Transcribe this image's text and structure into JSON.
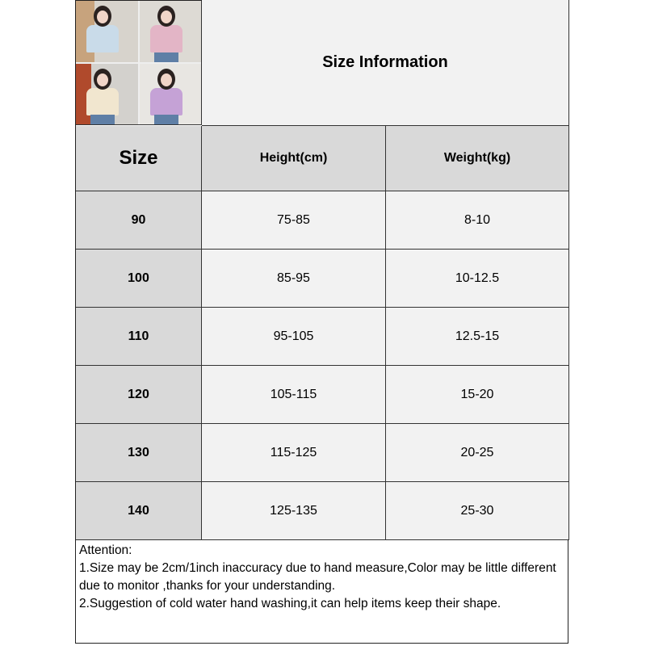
{
  "title": "Size Information",
  "photo": {
    "tiles": [
      {
        "top_color": "#c9dbe9",
        "bg": "#c7a37d"
      },
      {
        "top_color": "#e3b5c6",
        "bg": "#dddad4"
      },
      {
        "top_color": "#f1e6cf",
        "bg": "#b04a2c"
      },
      {
        "top_color": "#c5a2d6",
        "bg": "#e8e6e2"
      }
    ]
  },
  "table": {
    "headers": [
      "Size",
      "Height(cm)",
      "Weight(kg)"
    ],
    "rows": [
      [
        "90",
        "75-85",
        "8-10"
      ],
      [
        "100",
        "85-95",
        "10-12.5"
      ],
      [
        "110",
        "95-105",
        "12.5-15"
      ],
      [
        "120",
        "105-115",
        "15-20"
      ],
      [
        "130",
        "115-125",
        "20-25"
      ],
      [
        "140",
        "125-135",
        "25-30"
      ]
    ]
  },
  "attention": {
    "heading": "Attention:",
    "lines": [
      "1.Size may be 2cm/1inch inaccuracy due to hand measure,Color may be little different due to monitor ,thanks for your understanding.",
      "2.Suggestion of cold water hand washing,it can help items keep their shape."
    ]
  },
  "colors": {
    "header_bg": "#d9d9d9",
    "cell_bg": "#f2f2f2",
    "border": "#333333"
  }
}
